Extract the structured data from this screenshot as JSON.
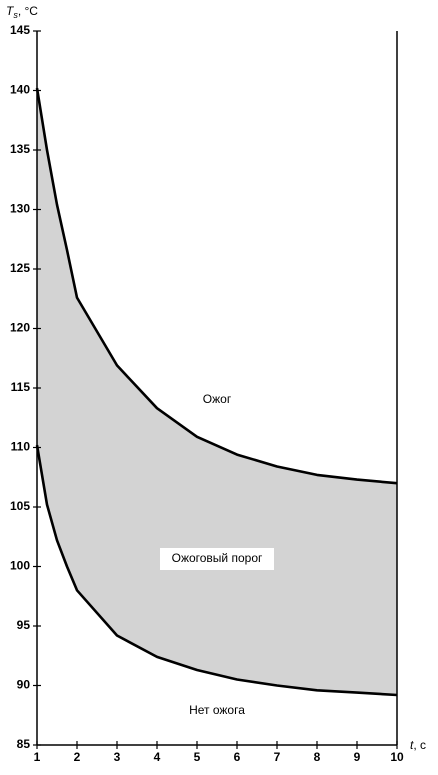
{
  "chart_data": {
    "type": "line",
    "y_label": [
      "T",
      "s",
      ", °C"
    ],
    "x_label": [
      "t",
      ", c"
    ],
    "annotations": [
      "Ожог",
      "Ожоговый порог",
      "Нет ожога"
    ],
    "x": [
      1,
      1.25,
      1.5,
      1.75,
      2,
      3,
      4,
      5,
      6,
      7,
      8,
      9,
      10
    ],
    "series": [
      {
        "color": "#000000",
        "values": [
          140.2,
          135,
          130.4,
          126.6,
          122.6,
          116.9,
          113.3,
          110.9,
          109.4,
          108.4,
          107.7,
          107.3,
          107.0
        ]
      },
      {
        "color": "#000000",
        "values": [
          110.2,
          105.2,
          102.2,
          100.0,
          98.0,
          94.2,
          92.4,
          91.3,
          90.5,
          90.0,
          89.6,
          89.4,
          89.2
        ]
      }
    ],
    "fill_between": "#d3d3d3",
    "xlim": [
      1,
      10
    ],
    "ylim": [
      85,
      145
    ],
    "xticks": [
      1,
      2,
      3,
      4,
      5,
      6,
      7,
      8,
      9,
      10
    ],
    "yticks": [
      85,
      90,
      95,
      100,
      105,
      110,
      115,
      120,
      125,
      130,
      135,
      140,
      145
    ]
  }
}
